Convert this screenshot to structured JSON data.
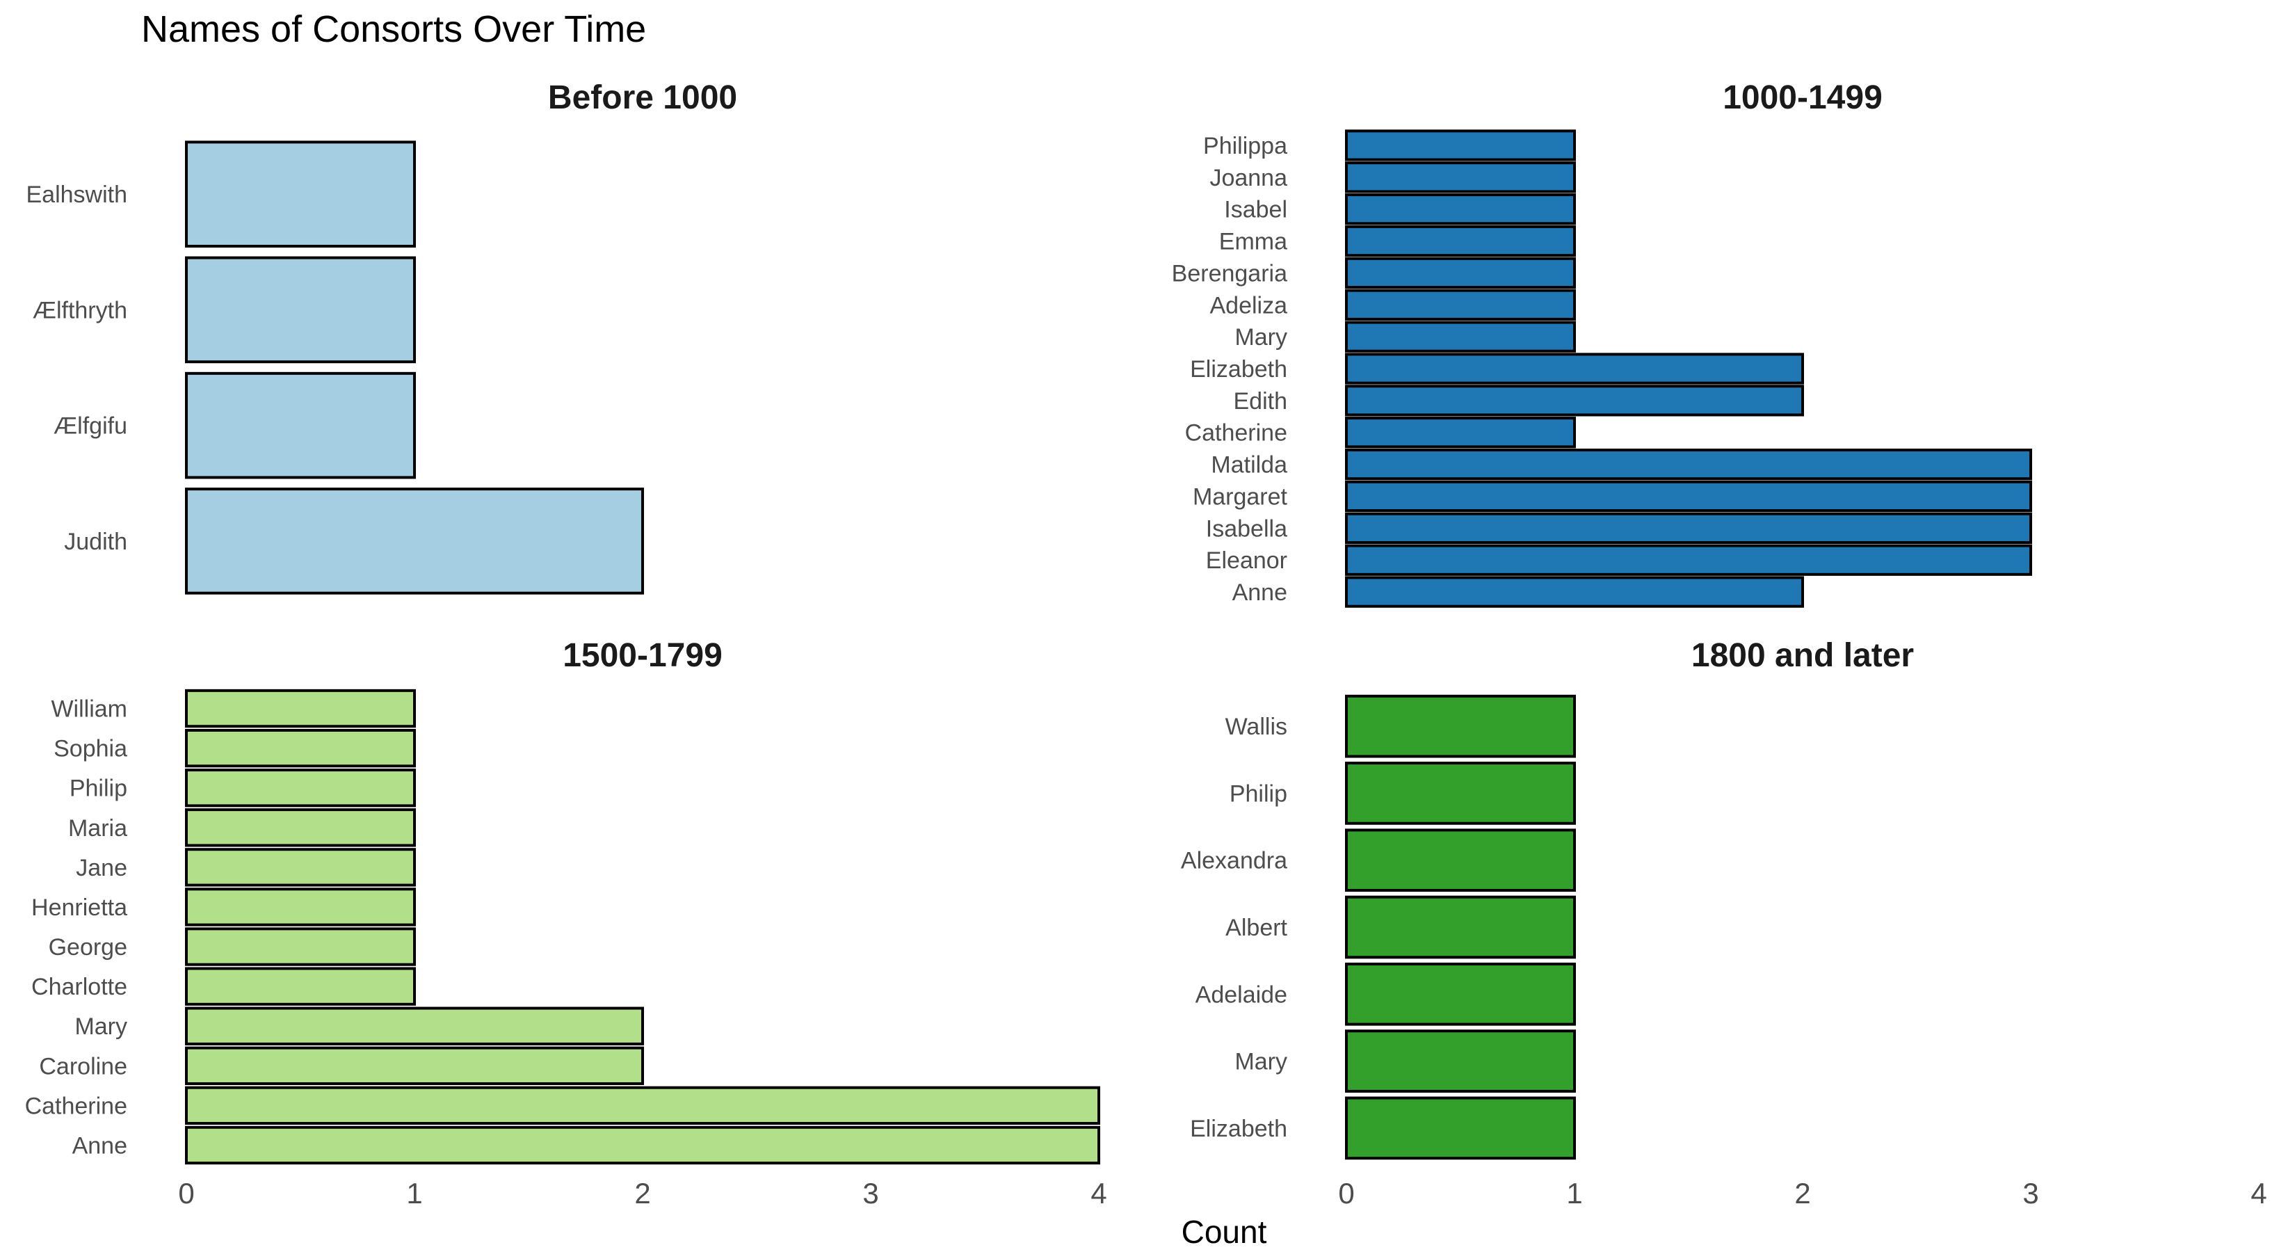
{
  "chart_data": {
    "type": "bar",
    "orientation": "horizontal",
    "title": "Names of Consorts Over Time",
    "xlabel": "Count",
    "ylabel": "",
    "xlim": [
      0,
      4
    ],
    "x_ticks": [
      "0",
      "1",
      "2",
      "3",
      "4"
    ],
    "grid": false,
    "legend": "none",
    "panels": [
      {
        "title": "Before 1000",
        "color": "#a6cee3",
        "categories": [
          "Ealhswith",
          "Ælfthryth",
          "Ælfgifu",
          "Judith"
        ],
        "values": [
          1,
          1,
          1,
          2
        ]
      },
      {
        "title": "1000-1499",
        "color": "#1f78b4",
        "categories": [
          "Philippa",
          "Joanna",
          "Isabel",
          "Emma",
          "Berengaria",
          "Adeliza",
          "Mary",
          "Elizabeth",
          "Edith",
          "Catherine",
          "Matilda",
          "Margaret",
          "Isabella",
          "Eleanor",
          "Anne"
        ],
        "values": [
          1,
          1,
          1,
          1,
          1,
          1,
          1,
          2,
          2,
          1,
          3,
          3,
          3,
          3,
          2
        ]
      },
      {
        "title": "1500-1799",
        "color": "#b2df8a",
        "categories": [
          "William",
          "Sophia",
          "Philip",
          "Maria",
          "Jane",
          "Henrietta",
          "George",
          "Charlotte",
          "Mary",
          "Caroline",
          "Catherine",
          "Anne"
        ],
        "values": [
          1,
          1,
          1,
          1,
          1,
          1,
          1,
          1,
          2,
          2,
          4,
          4
        ]
      },
      {
        "title": "1800 and later",
        "color": "#33a02c",
        "categories": [
          "Wallis",
          "Philip",
          "Alexandra",
          "Albert",
          "Adelaide",
          "Mary",
          "Elizabeth"
        ],
        "values": [
          1,
          1,
          1,
          1,
          1,
          1,
          1
        ]
      }
    ]
  }
}
